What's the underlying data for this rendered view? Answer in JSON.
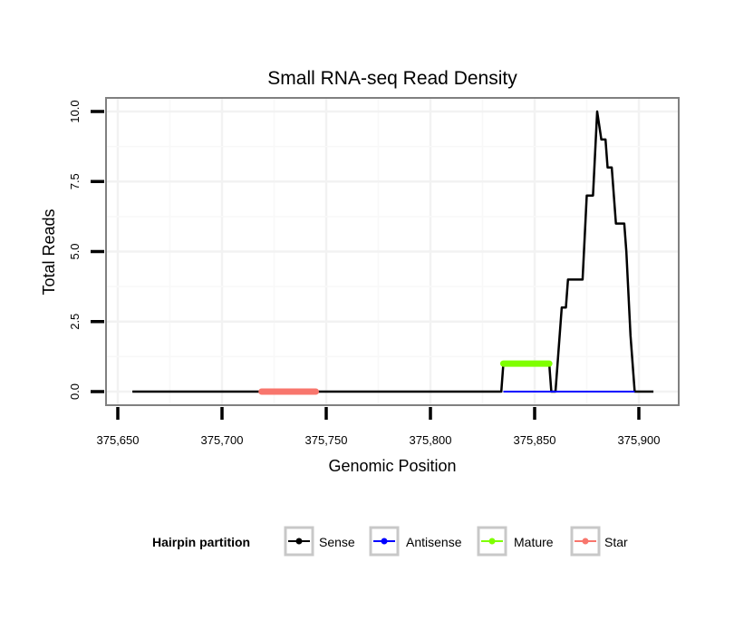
{
  "chart_data": {
    "type": "line",
    "title": "Small RNA-seq Read Density",
    "xlabel": "Genomic Position",
    "ylabel": "Total Reads",
    "xlim": [
      375645,
      375910
    ],
    "ylim": [
      -0.5,
      10.7
    ],
    "xticks": [
      375650,
      375700,
      375750,
      375800,
      375850,
      375900
    ],
    "xtick_labels": [
      "375,650",
      "375,700",
      "375,750",
      "375,800",
      "375,850",
      "375,900"
    ],
    "yticks": [
      0,
      2.5,
      5,
      7.5,
      10
    ],
    "ytick_labels": [
      "0.0",
      "2.5",
      "5.0",
      "7.5",
      "10.0"
    ],
    "grid": true,
    "legend": {
      "title": "Hairpin partition",
      "placement": "bottom"
    },
    "series": [
      {
        "name": "Sense",
        "color": "#000000",
        "x": [
          375657,
          375834,
          375835,
          375857,
          375858,
          375860,
          375861,
          375863,
          375865,
          375866,
          375873,
          375875,
          375878,
          375880,
          375882,
          375884,
          375885,
          375887,
          375888,
          375889,
          375893,
          375894,
          375896,
          375898,
          375907
        ],
        "y": [
          0,
          0,
          1,
          1,
          0,
          0,
          1,
          3,
          3,
          4,
          4,
          7,
          7,
          10,
          9,
          9,
          8,
          8,
          7,
          6,
          6,
          5,
          2,
          0,
          0
        ]
      },
      {
        "name": "Antisense",
        "color": "#0000FF",
        "x": [
          375835,
          375898
        ],
        "y": [
          0,
          0
        ]
      },
      {
        "name": "Mature",
        "color": "#7FFF00",
        "x": [
          375835,
          375857
        ],
        "y": [
          1,
          1
        ]
      },
      {
        "name": "Star",
        "color": "#F8766D",
        "x": [
          375719,
          375745
        ],
        "y": [
          0,
          0
        ]
      }
    ]
  }
}
